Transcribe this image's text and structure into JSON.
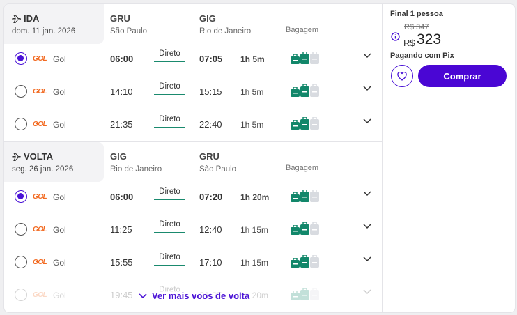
{
  "colors": {
    "accent": "#4a06d4",
    "bag_included": "#12876a",
    "bag_not_included": "#d8dbe0",
    "airline": "#f26a21"
  },
  "outbound": {
    "label": "IDA",
    "date": "dom. 11 jan. 2026",
    "origin_code": "GRU",
    "origin_city": "São Paulo",
    "dest_code": "GIG",
    "dest_city": "Rio de Janeiro",
    "baggage_label": "Bagagem",
    "flights": [
      {
        "airline": "Gol",
        "logo": "GOL",
        "dep": "06:00",
        "stops": "Direto",
        "arr": "07:05",
        "duration": "1h 5m",
        "selected": true
      },
      {
        "airline": "Gol",
        "logo": "GOL",
        "dep": "14:10",
        "stops": "Direto",
        "arr": "15:15",
        "duration": "1h 5m",
        "selected": false
      },
      {
        "airline": "Gol",
        "logo": "GOL",
        "dep": "21:35",
        "stops": "Direto",
        "arr": "22:40",
        "duration": "1h 5m",
        "selected": false
      }
    ]
  },
  "inbound": {
    "label": "VOLTA",
    "date": "seg. 26 jan. 2026",
    "origin_code": "GIG",
    "origin_city": "Rio de Janeiro",
    "dest_code": "GRU",
    "dest_city": "São Paulo",
    "baggage_label": "Bagagem",
    "flights": [
      {
        "airline": "Gol",
        "logo": "GOL",
        "dep": "06:00",
        "stops": "Direto",
        "arr": "07:20",
        "duration": "1h 20m",
        "selected": true
      },
      {
        "airline": "Gol",
        "logo": "GOL",
        "dep": "11:25",
        "stops": "Direto",
        "arr": "12:40",
        "duration": "1h 15m",
        "selected": false
      },
      {
        "airline": "Gol",
        "logo": "GOL",
        "dep": "15:55",
        "stops": "Direto",
        "arr": "17:10",
        "duration": "1h 15m",
        "selected": false
      },
      {
        "airline": "Gol",
        "logo": "GOL",
        "dep": "19:45",
        "stops": "Direto",
        "arr": "21:05",
        "duration": "1h 20m",
        "selected": false
      }
    ]
  },
  "more_label": "Ver mais voos de volta",
  "summary": {
    "final_label": "Final 1 pessoa",
    "old_price": "R$ 347",
    "currency": "R$",
    "price": "323",
    "payment_note": "Pagando com Pix",
    "buy_label": "Comprar"
  }
}
